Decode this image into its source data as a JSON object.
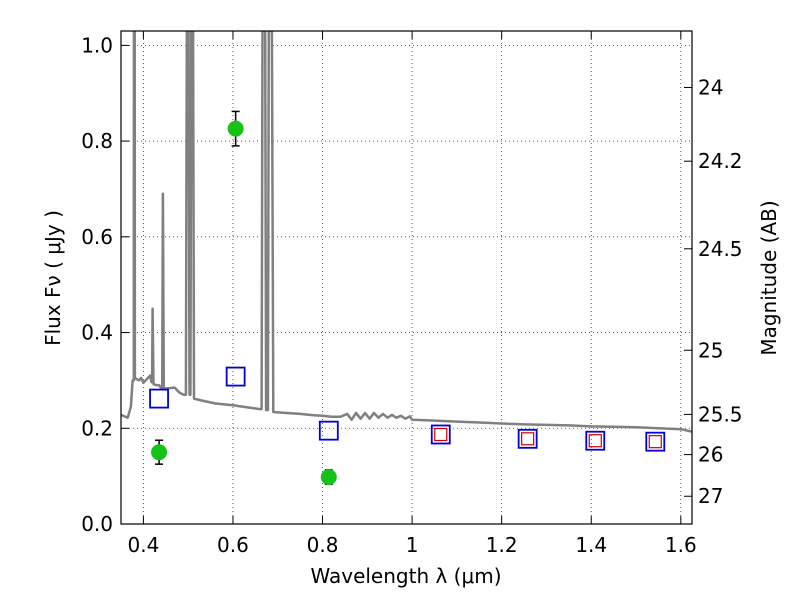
{
  "chart_data": {
    "type": "scatter",
    "title": "",
    "xlabel": "Wavelength  λ (μm)",
    "ylabel": "Flux  Fν  ( μJy )",
    "y2label": "Magnitude (AB)",
    "xlim": [
      0.35,
      1.625
    ],
    "ylim": [
      0.0,
      1.03
    ],
    "grid": true,
    "grid_style": "dotted",
    "x_ticks": [
      0.4,
      0.6,
      0.8,
      1.0,
      1.2,
      1.4,
      1.6
    ],
    "x_tick_labels": [
      "0.4",
      "0.6",
      "0.8",
      "1",
      "1.2",
      "1.4",
      "1.6"
    ],
    "y_ticks": [
      0.0,
      0.2,
      0.4,
      0.6,
      0.8,
      1.0
    ],
    "y_tick_labels": [
      "0.0",
      "0.2",
      "0.4",
      "0.6",
      "0.8",
      "1.0"
    ],
    "y2_ticks": [
      {
        "label": "24",
        "flux": 0.912
      },
      {
        "label": "24.2",
        "flux": 0.758
      },
      {
        "label": "24.5",
        "flux": 0.575
      },
      {
        "label": "25",
        "flux": 0.363
      },
      {
        "label": "25.5",
        "flux": 0.229
      },
      {
        "label": "26",
        "flux": 0.145
      },
      {
        "label": "27",
        "flux": 0.058
      }
    ],
    "colors": {
      "spectrum": "#808080",
      "observed": "#17c217",
      "model_box": "#0000dd",
      "model_inner": "#cc0000"
    },
    "series": [
      {
        "style": "line",
        "points": [
          [
            0.35,
            0.228
          ],
          [
            0.365,
            0.222
          ],
          [
            0.372,
            0.245
          ],
          [
            0.376,
            0.3
          ],
          [
            0.3785,
            0.3
          ],
          [
            0.3788,
            1.03
          ],
          [
            0.3805,
            1.03
          ],
          [
            0.381,
            0.305
          ],
          [
            0.39,
            0.3
          ],
          [
            0.395,
            0.305
          ],
          [
            0.4,
            0.295
          ],
          [
            0.41,
            0.305
          ],
          [
            0.415,
            0.31
          ],
          [
            0.418,
            0.296
          ],
          [
            0.4195,
            0.296
          ],
          [
            0.4205,
            0.45
          ],
          [
            0.4225,
            0.292
          ],
          [
            0.43,
            0.29
          ],
          [
            0.435,
            0.29
          ],
          [
            0.44,
            0.283
          ],
          [
            0.442,
            0.283
          ],
          [
            0.4435,
            0.69
          ],
          [
            0.4455,
            0.283
          ],
          [
            0.46,
            0.284
          ],
          [
            0.47,
            0.285
          ],
          [
            0.48,
            0.275
          ],
          [
            0.49,
            0.27
          ],
          [
            0.495,
            0.27
          ],
          [
            0.497,
            1.03
          ],
          [
            0.501,
            1.03
          ],
          [
            0.503,
            0.27
          ],
          [
            0.505,
            0.27
          ],
          [
            0.507,
            1.03
          ],
          [
            0.511,
            1.03
          ],
          [
            0.513,
            0.262
          ],
          [
            0.53,
            0.258
          ],
          [
            0.56,
            0.252
          ],
          [
            0.6,
            0.248
          ],
          [
            0.63,
            0.244
          ],
          [
            0.66,
            0.24
          ],
          [
            0.664,
            0.24
          ],
          [
            0.666,
            1.03
          ],
          [
            0.672,
            1.03
          ],
          [
            0.674,
            0.238
          ],
          [
            0.678,
            0.238
          ],
          [
            0.68,
            1.03
          ],
          [
            0.687,
            1.03
          ],
          [
            0.69,
            0.234
          ],
          [
            0.72,
            0.232
          ],
          [
            0.75,
            0.23
          ],
          [
            0.78,
            0.227
          ],
          [
            0.8,
            0.226
          ],
          [
            0.82,
            0.224
          ],
          [
            0.84,
            0.224
          ],
          [
            0.855,
            0.23
          ],
          [
            0.865,
            0.218
          ],
          [
            0.875,
            0.232
          ],
          [
            0.885,
            0.22
          ],
          [
            0.895,
            0.232
          ],
          [
            0.905,
            0.22
          ],
          [
            0.915,
            0.232
          ],
          [
            0.925,
            0.222
          ],
          [
            0.935,
            0.23
          ],
          [
            0.945,
            0.222
          ],
          [
            0.955,
            0.228
          ],
          [
            0.965,
            0.222
          ],
          [
            0.975,
            0.226
          ],
          [
            0.985,
            0.22
          ],
          [
            0.995,
            0.225
          ],
          [
            1.0,
            0.218
          ],
          [
            1.05,
            0.216
          ],
          [
            1.1,
            0.214
          ],
          [
            1.15,
            0.212
          ],
          [
            1.2,
            0.21
          ],
          [
            1.25,
            0.208
          ],
          [
            1.3,
            0.207
          ],
          [
            1.35,
            0.206
          ],
          [
            1.4,
            0.204
          ],
          [
            1.45,
            0.203
          ],
          [
            1.5,
            0.202
          ],
          [
            1.55,
            0.2
          ],
          [
            1.6,
            0.198
          ],
          [
            1.625,
            0.193
          ]
        ]
      },
      {
        "style": "points-errorbars",
        "points": [
          {
            "x": 0.435,
            "y": 0.15,
            "yerr": 0.025
          },
          {
            "x": 0.606,
            "y": 0.826,
            "yerr": 0.036
          },
          {
            "x": 0.814,
            "y": 0.098,
            "yerr": 0.015
          }
        ]
      },
      {
        "style": "open-squares",
        "points": [
          {
            "x": 0.435,
            "y": 0.262
          },
          {
            "x": 0.606,
            "y": 0.308
          },
          {
            "x": 0.814,
            "y": 0.195
          },
          {
            "x": 1.064,
            "y": 0.187
          },
          {
            "x": 1.258,
            "y": 0.178
          },
          {
            "x": 1.409,
            "y": 0.174
          },
          {
            "x": 1.543,
            "y": 0.172
          }
        ]
      },
      {
        "style": "open-squares-inner",
        "points": [
          {
            "x": 1.064,
            "y": 0.187
          },
          {
            "x": 1.258,
            "y": 0.178
          },
          {
            "x": 1.409,
            "y": 0.174
          },
          {
            "x": 1.543,
            "y": 0.172
          }
        ]
      }
    ]
  }
}
